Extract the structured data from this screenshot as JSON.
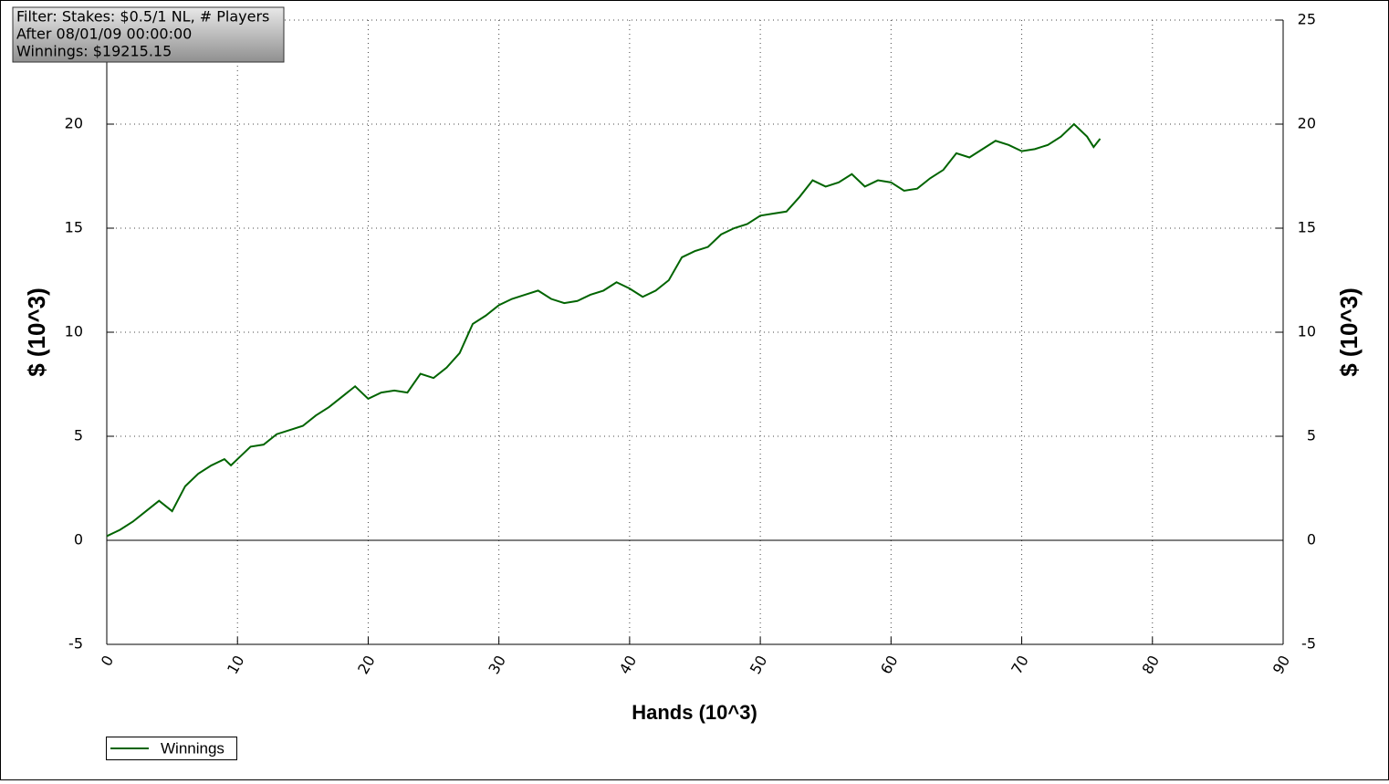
{
  "chart_data": {
    "type": "line",
    "annotations": [
      "Filter: Stakes: $0.5/1 NL, # Players",
      "After 08/01/09 00:00:00",
      "Winnings: $19215.15"
    ],
    "x_label": "Hands (10^3)",
    "y_label": "$ (10^3)",
    "x": [
      0,
      1,
      2,
      3,
      4,
      5,
      6,
      7,
      8,
      9,
      9.5,
      10,
      11,
      12,
      13,
      14,
      15,
      16,
      17,
      18,
      19,
      20,
      21,
      22,
      23,
      24,
      25,
      26,
      27,
      28,
      29,
      30,
      31,
      32,
      33,
      34,
      35,
      36,
      37,
      38,
      39,
      40,
      41,
      42,
      43,
      44,
      45,
      46,
      47,
      48,
      49,
      50,
      51,
      52,
      53,
      54,
      55,
      56,
      57,
      58,
      59,
      60,
      61,
      62,
      63,
      64,
      65,
      66,
      67,
      68,
      69,
      70,
      71,
      72,
      73,
      74,
      75,
      75.5,
      76
    ],
    "series": [
      {
        "name": "Winnings",
        "color": "#006400",
        "values": [
          0.2,
          0.5,
          0.9,
          1.4,
          1.9,
          1.4,
          2.6,
          3.2,
          3.6,
          3.9,
          3.6,
          3.9,
          4.5,
          4.6,
          5.1,
          5.3,
          5.5,
          6.0,
          6.4,
          6.9,
          7.4,
          6.8,
          7.1,
          7.2,
          7.1,
          8.0,
          7.8,
          8.3,
          9.0,
          10.4,
          10.8,
          11.3,
          11.6,
          11.8,
          12.0,
          11.6,
          11.4,
          11.5,
          11.8,
          12.0,
          12.4,
          12.1,
          11.7,
          12.0,
          12.5,
          13.6,
          13.9,
          14.1,
          14.7,
          15.0,
          15.2,
          15.6,
          15.7,
          15.8,
          16.5,
          17.3,
          17.0,
          17.2,
          17.6,
          17.0,
          17.3,
          17.2,
          16.8,
          16.9,
          17.4,
          17.8,
          18.6,
          18.4,
          18.8,
          19.2,
          19.0,
          18.7,
          18.8,
          19.0,
          19.4,
          20.0,
          19.4,
          18.9,
          19.3
        ]
      }
    ],
    "xlim": [
      0,
      90
    ],
    "xticks": [
      0,
      10,
      20,
      30,
      40,
      50,
      60,
      70,
      80,
      90
    ],
    "ylim": [
      -5,
      25
    ],
    "yticks": [
      -5,
      0,
      5,
      10,
      15,
      20,
      25
    ],
    "grid": true
  }
}
